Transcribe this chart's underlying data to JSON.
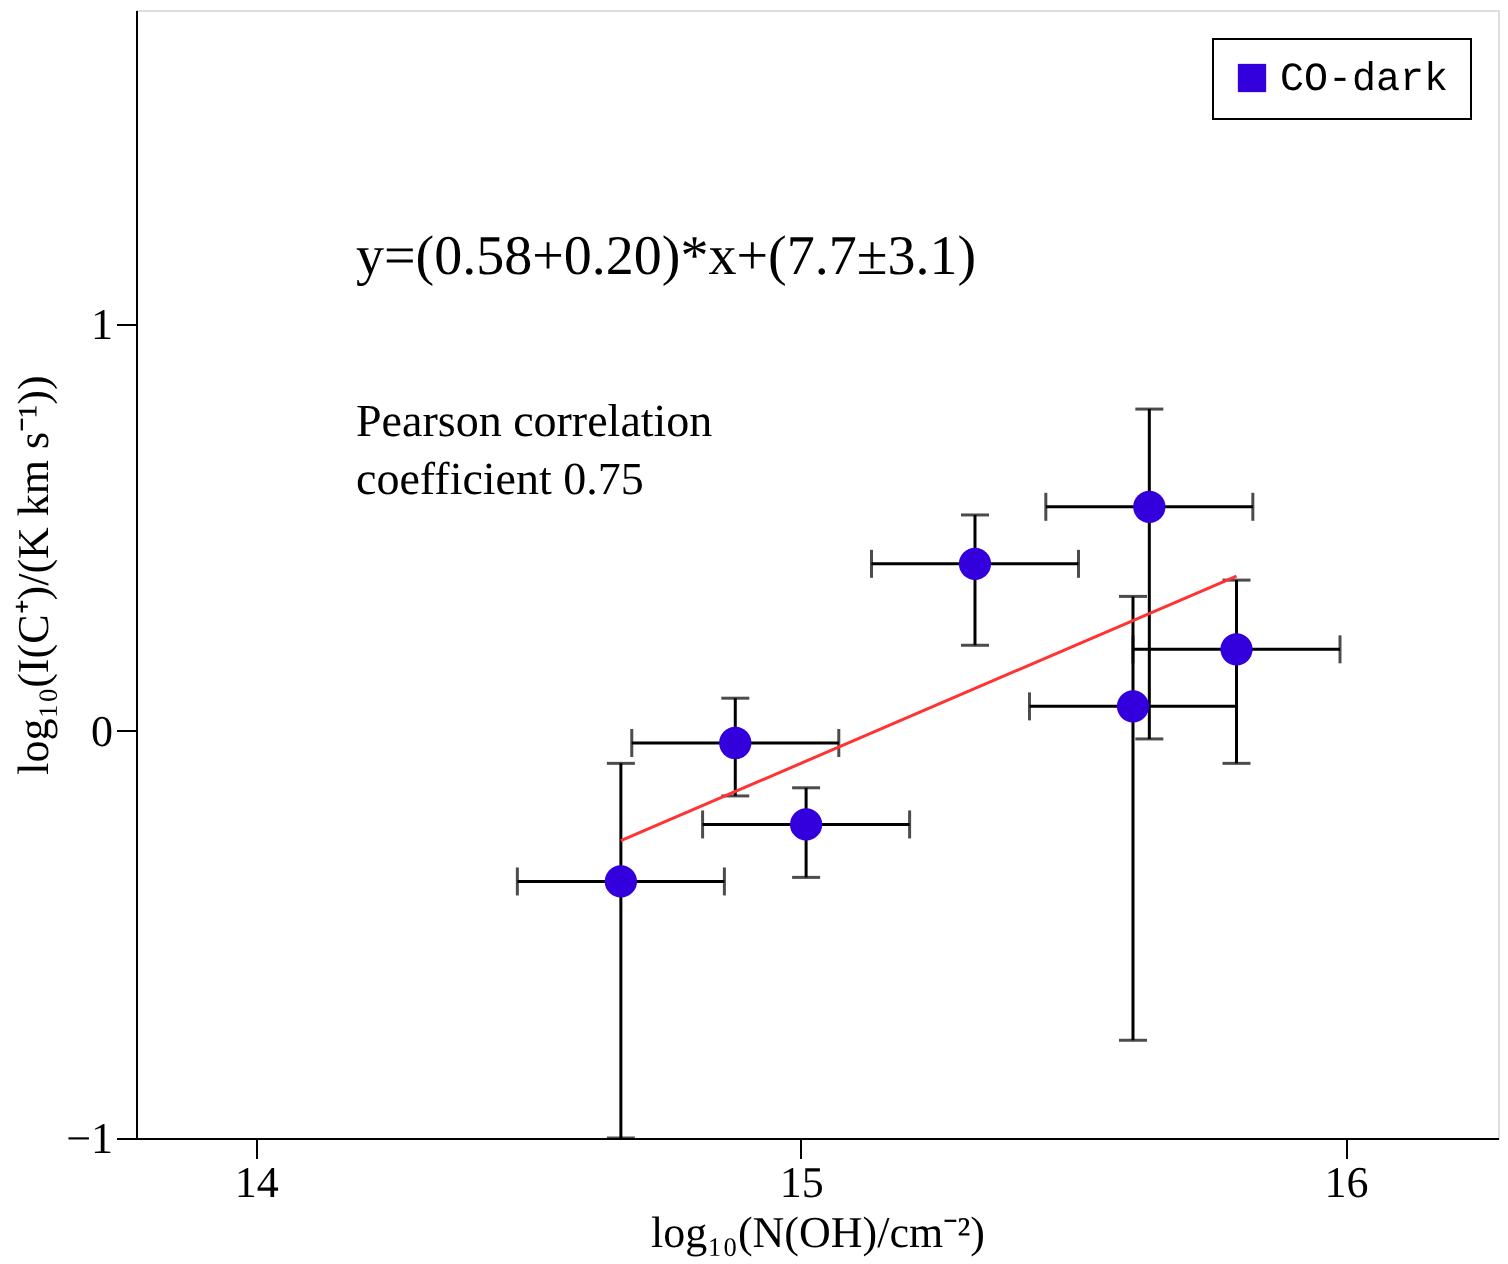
{
  "chart_data": {
    "type": "scatter",
    "xlabel": "log₁₀(N(OH)/cm⁻²)",
    "ylabel": "log₁₀(I(C⁺)/(K km s⁻¹))",
    "xlim": [
      13.78,
      16.28
    ],
    "xticks": [
      14,
      15,
      16
    ],
    "ylim": [
      -1,
      1.77
    ],
    "yticks": [
      -1,
      0,
      1
    ],
    "grid": false,
    "legend": "top right",
    "marker": "circle",
    "annotations": [
      "y=(0.58+0.20)*x+(7.7±3.1)",
      "Pearson correlation\ncoefficient  0.75"
    ],
    "series": [
      {
        "name": "CO-dark",
        "color": "#3300dd",
        "x": [
          14.67,
          14.88,
          15.01,
          15.32,
          15.64,
          15.61,
          15.8
        ],
        "values": [
          -0.37,
          -0.03,
          -0.23,
          0.41,
          0.55,
          0.06,
          0.2
        ],
        "xerrors": [
          0.19,
          0.19,
          0.19,
          0.19,
          0.19,
          0.19,
          0.19
        ],
        "errors": [
          [
            -1.0,
            -0.08
          ],
          [
            -0.16,
            0.08
          ],
          [
            -0.36,
            -0.14
          ],
          [
            0.21,
            0.53
          ],
          [
            -0.02,
            0.79
          ],
          [
            -0.76,
            0.33
          ],
          [
            -0.08,
            0.37
          ]
        ]
      },
      {
        "color": "#ff3333",
        "type": "line",
        "marker": "none",
        "x": [
          14.67,
          15.8
        ],
        "values": [
          -0.27,
          0.38
        ]
      }
    ]
  }
}
